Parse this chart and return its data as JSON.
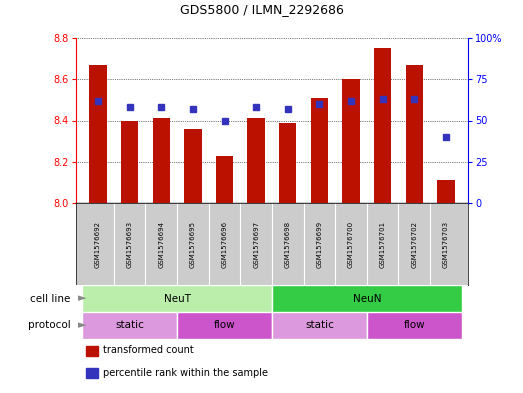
{
  "title": "GDS5800 / ILMN_2292686",
  "samples": [
    "GSM1576692",
    "GSM1576693",
    "GSM1576694",
    "GSM1576695",
    "GSM1576696",
    "GSM1576697",
    "GSM1576698",
    "GSM1576699",
    "GSM1576700",
    "GSM1576701",
    "GSM1576702",
    "GSM1576703"
  ],
  "bar_values": [
    8.67,
    8.4,
    8.41,
    8.36,
    8.23,
    8.41,
    8.39,
    8.51,
    8.6,
    8.75,
    8.67,
    8.11
  ],
  "percentile_values": [
    62,
    58,
    58,
    57,
    50,
    58,
    57,
    60,
    62,
    63,
    63,
    40
  ],
  "y_min": 8.0,
  "y_max": 8.8,
  "y_ticks": [
    8.0,
    8.2,
    8.4,
    8.6,
    8.8
  ],
  "pct_ticks": [
    0,
    25,
    50,
    75,
    100
  ],
  "bar_color": "#bb1100",
  "dot_color": "#3333bb",
  "plot_bg_color": "#ffffff",
  "grid_color": "#000000",
  "cell_line_groups": [
    {
      "label": "NeuT",
      "start": 0,
      "end": 5,
      "color": "#bbeeaa"
    },
    {
      "label": "NeuN",
      "start": 6,
      "end": 11,
      "color": "#33cc44"
    }
  ],
  "protocol_groups": [
    {
      "label": "static",
      "start": 0,
      "end": 2,
      "color": "#dd99dd"
    },
    {
      "label": "flow",
      "start": 3,
      "end": 5,
      "color": "#cc55cc"
    },
    {
      "label": "static",
      "start": 6,
      "end": 8,
      "color": "#dd99dd"
    },
    {
      "label": "flow",
      "start": 9,
      "end": 11,
      "color": "#cc55cc"
    }
  ],
  "legend_items": [
    {
      "label": "transformed count",
      "color": "#bb1100"
    },
    {
      "label": "percentile rank within the sample",
      "color": "#3333bb"
    }
  ],
  "sample_label_area_color": "#cccccc",
  "sample_divider_color": "#aaaaaa"
}
